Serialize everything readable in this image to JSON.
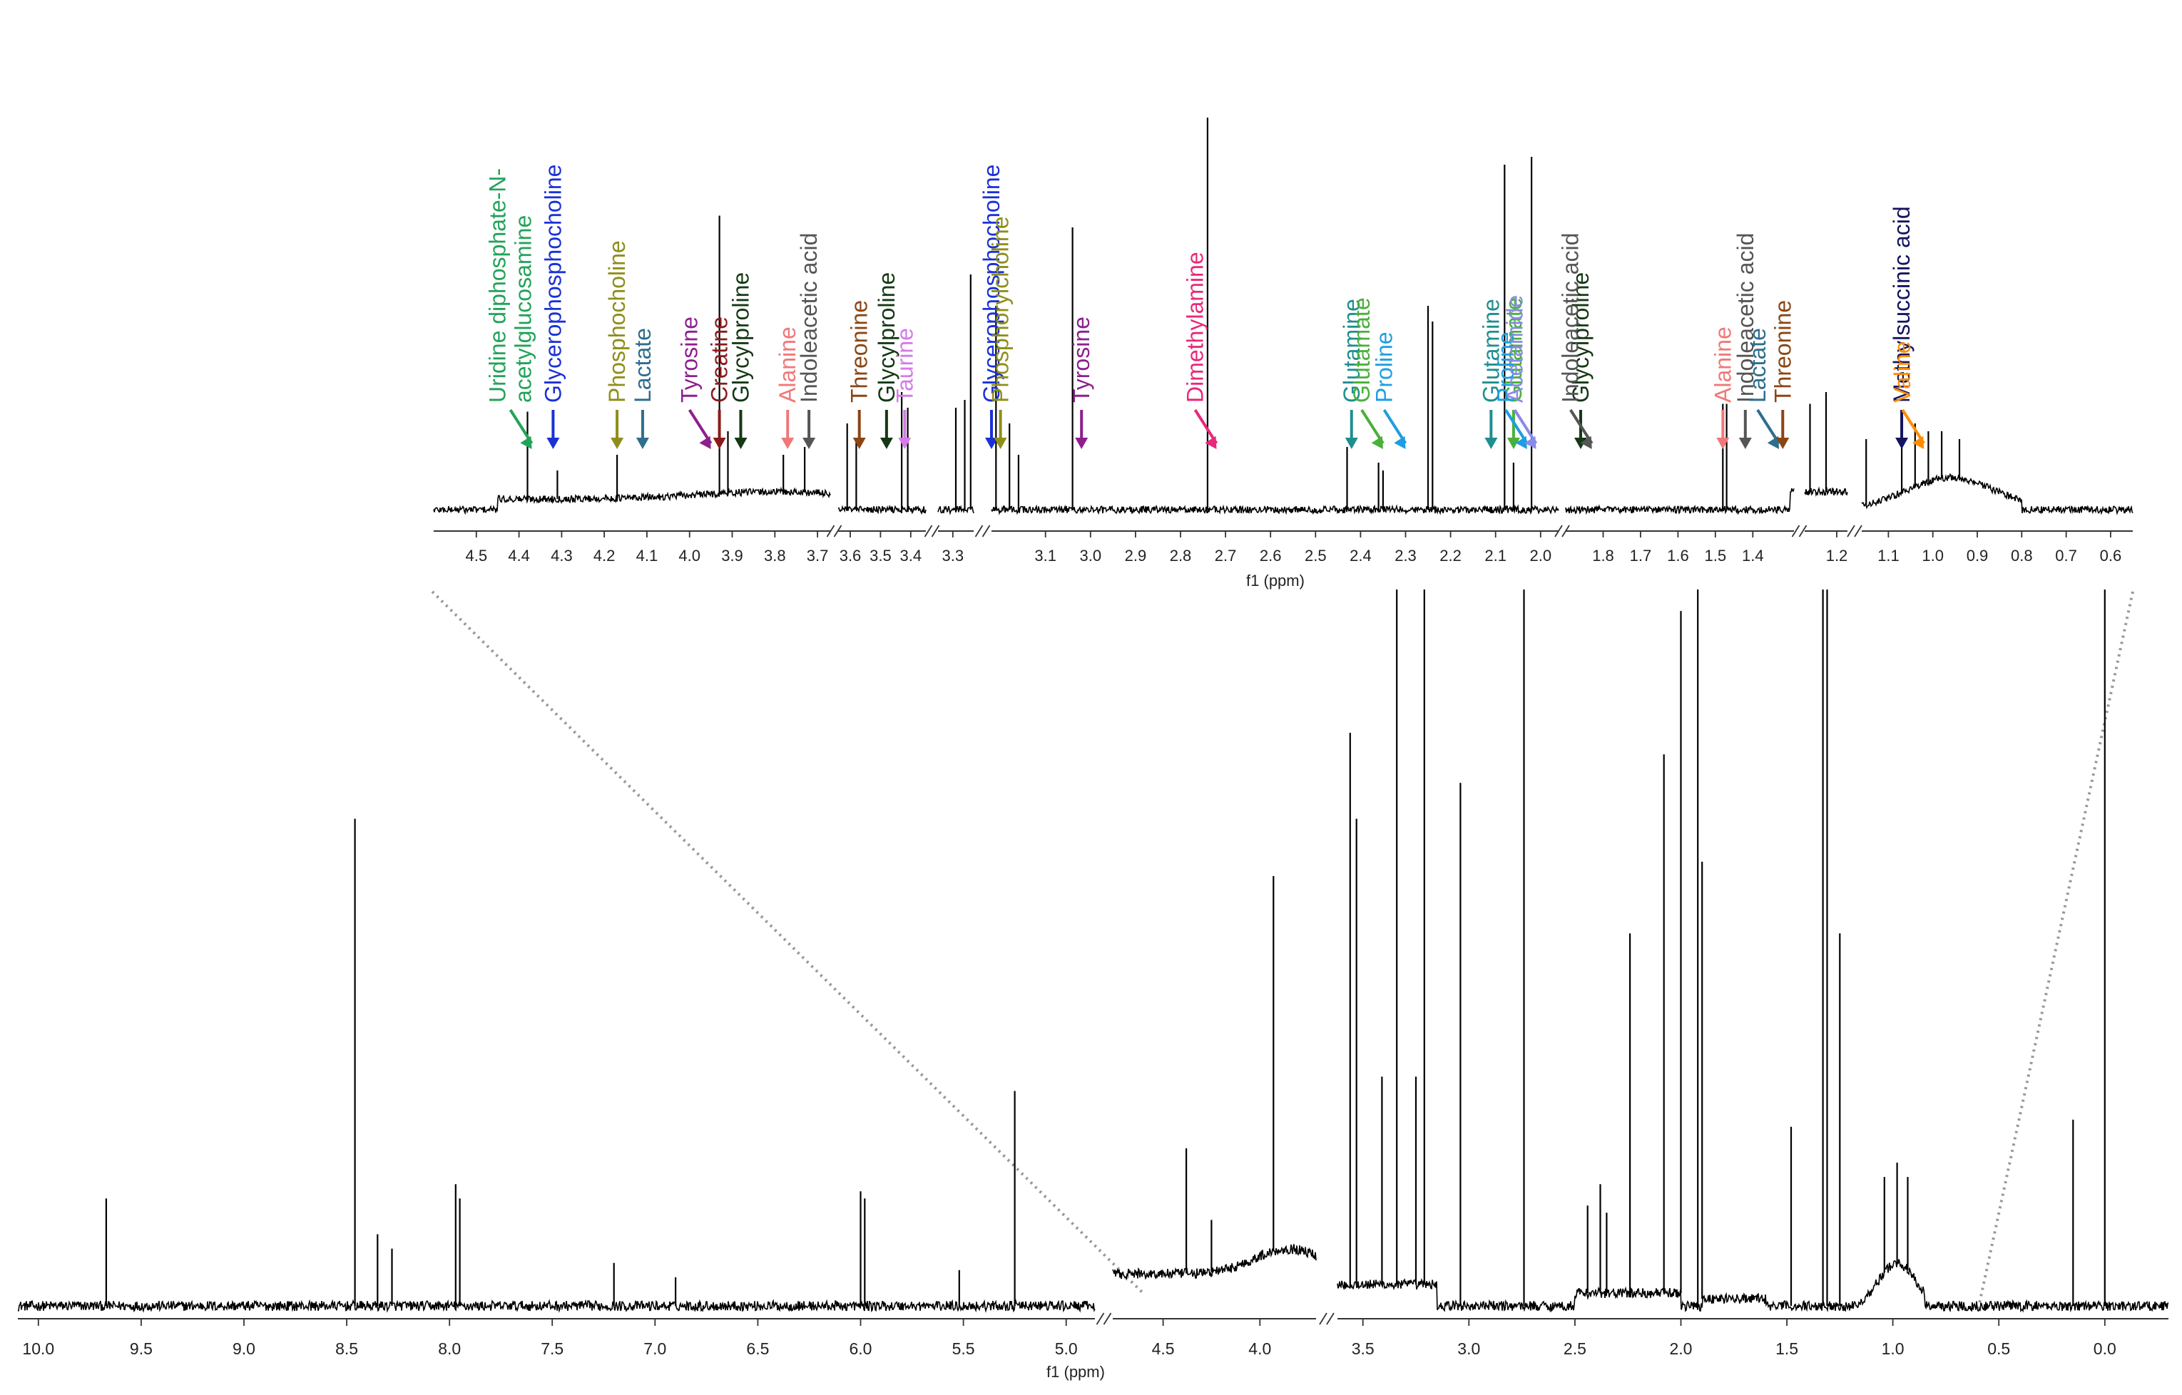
{
  "chart_data": [
    {
      "type": "line",
      "panel": "full 1H NMR spectrum",
      "xlabel": "f1 (ppm)",
      "x_reversed": true,
      "axis_segments": [
        [
          10.1,
          4.86
        ],
        [
          4.76,
          3.71
        ],
        [
          3.62,
          -0.3
        ]
      ],
      "ticks": [
        "10.0",
        "9.5",
        "9.0",
        "8.5",
        "8.0",
        "7.5",
        "7.0",
        "6.5",
        "6.0",
        "5.5",
        "5.0",
        "4.5",
        "4.0",
        "3.5",
        "3.0",
        "2.5",
        "2.0",
        "1.5",
        "1.0",
        "0.5",
        "0.0"
      ],
      "tick_values": [
        10.0,
        9.5,
        9.0,
        8.5,
        8.0,
        7.5,
        7.0,
        6.5,
        6.0,
        5.5,
        5.0,
        4.5,
        4.0,
        3.5,
        3.0,
        2.5,
        2.0,
        1.5,
        1.0,
        0.5,
        0.0
      ],
      "peaks": [
        {
          "ppm": 9.67,
          "intensity": 0.15
        },
        {
          "ppm": 8.46,
          "intensity": 0.68
        },
        {
          "ppm": 8.35,
          "intensity": 0.1
        },
        {
          "ppm": 8.28,
          "intensity": 0.08
        },
        {
          "ppm": 7.97,
          "intensity": 0.17
        },
        {
          "ppm": 7.95,
          "intensity": 0.15
        },
        {
          "ppm": 7.2,
          "intensity": 0.06
        },
        {
          "ppm": 6.9,
          "intensity": 0.04
        },
        {
          "ppm": 6.0,
          "intensity": 0.16
        },
        {
          "ppm": 5.98,
          "intensity": 0.15
        },
        {
          "ppm": 5.52,
          "intensity": 0.05
        },
        {
          "ppm": 5.25,
          "intensity": 0.3
        },
        {
          "ppm": 4.38,
          "intensity": 0.22
        },
        {
          "ppm": 4.25,
          "intensity": 0.12
        },
        {
          "ppm": 3.93,
          "intensity": 0.6
        },
        {
          "ppm": 3.56,
          "intensity": 0.8
        },
        {
          "ppm": 3.53,
          "intensity": 0.68
        },
        {
          "ppm": 3.41,
          "intensity": 0.32
        },
        {
          "ppm": 3.34,
          "intensity": 1.0
        },
        {
          "ppm": 3.25,
          "intensity": 0.32
        },
        {
          "ppm": 3.21,
          "intensity": 1.0
        },
        {
          "ppm": 3.04,
          "intensity": 0.73
        },
        {
          "ppm": 2.74,
          "intensity": 1.0
        },
        {
          "ppm": 2.44,
          "intensity": 0.14
        },
        {
          "ppm": 2.38,
          "intensity": 0.17
        },
        {
          "ppm": 2.35,
          "intensity": 0.13
        },
        {
          "ppm": 2.24,
          "intensity": 0.52
        },
        {
          "ppm": 2.08,
          "intensity": 0.77
        },
        {
          "ppm": 2.0,
          "intensity": 0.97
        },
        {
          "ppm": 1.92,
          "intensity": 1.0
        },
        {
          "ppm": 1.9,
          "intensity": 0.62
        },
        {
          "ppm": 1.48,
          "intensity": 0.25
        },
        {
          "ppm": 1.33,
          "intensity": 1.0
        },
        {
          "ppm": 1.31,
          "intensity": 1.0
        },
        {
          "ppm": 1.25,
          "intensity": 0.52
        },
        {
          "ppm": 1.04,
          "intensity": 0.18
        },
        {
          "ppm": 0.98,
          "intensity": 0.2
        },
        {
          "ppm": 0.93,
          "intensity": 0.18
        },
        {
          "ppm": 0.15,
          "intensity": 0.26
        },
        {
          "ppm": 0.0,
          "intensity": 1.0
        }
      ],
      "zoom_indicator": "dotted lines connect the 4.6–0.6 ppm region to the inset"
    },
    {
      "type": "line",
      "panel": "inset 4.6–0.55 ppm with metabolite assignments",
      "xlabel": "f1 (ppm)",
      "x_reversed": true,
      "axis_segments": [
        [
          4.6,
          3.67
        ],
        [
          3.64,
          3.35
        ],
        [
          3.35,
          3.23
        ],
        [
          3.22,
          1.96
        ],
        [
          1.9,
          1.29
        ],
        [
          1.26,
          1.18
        ],
        [
          1.16,
          0.55
        ]
      ],
      "ticks": [
        "4.5",
        "4.4",
        "4.3",
        "4.2",
        "4.1",
        "4.0",
        "3.9",
        "3.8",
        "3.7",
        "3.6",
        "3.5",
        "3.4",
        "3.3",
        "3.1",
        "3.0",
        "2.9",
        "2.8",
        "2.7",
        "2.6",
        "2.5",
        "2.4",
        "2.3",
        "2.2",
        "2.1",
        "2.0",
        "1.8",
        "1.7",
        "1.6",
        "1.5",
        "1.4",
        "1.2",
        "1.1",
        "1.0",
        "0.9",
        "0.8",
        "0.7",
        "0.6"
      ],
      "tick_values": [
        4.5,
        4.4,
        4.3,
        4.2,
        4.1,
        4.0,
        3.9,
        3.8,
        3.7,
        3.6,
        3.5,
        3.4,
        3.3,
        3.1,
        3.0,
        2.9,
        2.8,
        2.7,
        2.6,
        2.5,
        2.4,
        2.3,
        2.2,
        2.1,
        2.0,
        1.8,
        1.7,
        1.6,
        1.5,
        1.4,
        1.2,
        1.1,
        1.0,
        0.9,
        0.8,
        0.7,
        0.6
      ],
      "peaks": [
        {
          "ppm": 4.38,
          "intensity": 0.25
        },
        {
          "ppm": 4.31,
          "intensity": 0.1
        },
        {
          "ppm": 4.17,
          "intensity": 0.14
        },
        {
          "ppm": 3.93,
          "intensity": 0.75
        },
        {
          "ppm": 3.91,
          "intensity": 0.2
        },
        {
          "ppm": 3.78,
          "intensity": 0.14
        },
        {
          "ppm": 3.73,
          "intensity": 0.16
        },
        {
          "ppm": 3.61,
          "intensity": 0.22
        },
        {
          "ppm": 3.58,
          "intensity": 0.18
        },
        {
          "ppm": 3.43,
          "intensity": 0.3
        },
        {
          "ppm": 3.41,
          "intensity": 0.26
        },
        {
          "ppm": 3.29,
          "intensity": 0.26
        },
        {
          "ppm": 3.26,
          "intensity": 0.28
        },
        {
          "ppm": 3.24,
          "intensity": 0.6
        },
        {
          "ppm": 3.21,
          "intensity": 0.52
        },
        {
          "ppm": 3.18,
          "intensity": 0.22
        },
        {
          "ppm": 3.16,
          "intensity": 0.14
        },
        {
          "ppm": 3.04,
          "intensity": 0.72
        },
        {
          "ppm": 2.74,
          "intensity": 1.0
        },
        {
          "ppm": 2.43,
          "intensity": 0.16
        },
        {
          "ppm": 2.36,
          "intensity": 0.12
        },
        {
          "ppm": 2.35,
          "intensity": 0.1
        },
        {
          "ppm": 2.25,
          "intensity": 0.52
        },
        {
          "ppm": 2.24,
          "intensity": 0.48
        },
        {
          "ppm": 2.08,
          "intensity": 0.88
        },
        {
          "ppm": 2.06,
          "intensity": 0.12
        },
        {
          "ppm": 2.02,
          "intensity": 0.9
        },
        {
          "ppm": 1.48,
          "intensity": 0.27
        },
        {
          "ppm": 1.47,
          "intensity": 0.27
        },
        {
          "ppm": 1.25,
          "intensity": 0.27
        },
        {
          "ppm": 1.22,
          "intensity": 0.3
        },
        {
          "ppm": 1.15,
          "intensity": 0.18
        },
        {
          "ppm": 1.07,
          "intensity": 0.2
        },
        {
          "ppm": 1.04,
          "intensity": 0.22
        },
        {
          "ppm": 1.01,
          "intensity": 0.2
        },
        {
          "ppm": 0.98,
          "intensity": 0.2
        },
        {
          "ppm": 0.94,
          "intensity": 0.18
        }
      ],
      "annotations": [
        {
          "lines": [
            "Uridine diphosphate-N-",
            "acetylglucosamine"
          ],
          "ppm": 4.37,
          "color": "#22a35a",
          "arrow": "diagonal"
        },
        {
          "lines": [
            "Glycerophosphocholine"
          ],
          "ppm": 4.32,
          "color": "#1a31d6",
          "arrow": "vertical"
        },
        {
          "lines": [
            "Phosphocholine"
          ],
          "ppm": 4.17,
          "color": "#8e8e19",
          "arrow": "vertical"
        },
        {
          "lines": [
            "Lactate"
          ],
          "ppm": 4.11,
          "color": "#2e6e8e",
          "arrow": "vertical"
        },
        {
          "lines": [
            "Tyrosine"
          ],
          "ppm": 3.95,
          "color": "#8e1f8e",
          "arrow": "diagonal"
        },
        {
          "lines": [
            "Creatine"
          ],
          "ppm": 3.93,
          "color": "#8b1a1a",
          "arrow": "vertical"
        },
        {
          "lines": [
            "Glycylproline"
          ],
          "ppm": 3.88,
          "color": "#143814",
          "arrow": "vertical"
        },
        {
          "lines": [
            "Alanine"
          ],
          "ppm": 3.77,
          "color": "#f07878",
          "arrow": "vertical"
        },
        {
          "lines": [
            "Indoleacetic acid"
          ],
          "ppm": 3.72,
          "color": "#555555",
          "arrow": "vertical"
        },
        {
          "lines": [
            "Threonine"
          ],
          "ppm": 3.57,
          "color": "#8b4513",
          "arrow": "vertical"
        },
        {
          "lines": [
            "Glycylproline"
          ],
          "ppm": 3.48,
          "color": "#143814",
          "arrow": "vertical"
        },
        {
          "lines": [
            "Taurine"
          ],
          "ppm": 3.42,
          "color": "#d57ae8",
          "arrow": "vertical"
        },
        {
          "lines": [
            "Glycerophosphocholine"
          ],
          "ppm": 3.22,
          "color": "#1a31d6",
          "arrow": "vertical"
        },
        {
          "lines": [
            "Phosphorylcholine"
          ],
          "ppm": 3.2,
          "color": "#8e8e19",
          "arrow": "vertical"
        },
        {
          "lines": [
            "Tyrosine"
          ],
          "ppm": 3.02,
          "color": "#8e1f8e",
          "arrow": "vertical"
        },
        {
          "lines": [
            "Dimethylamine"
          ],
          "ppm": 2.72,
          "color": "#e8287a",
          "arrow": "diagonal"
        },
        {
          "lines": [
            "Glutamine"
          ],
          "ppm": 2.42,
          "color": "#1f8e8e",
          "arrow": "vertical"
        },
        {
          "lines": [
            "Glutamate"
          ],
          "ppm": 2.35,
          "color": "#4ab03a",
          "arrow": "diagonal"
        },
        {
          "lines": [
            "Proline"
          ],
          "ppm": 2.3,
          "color": "#1e9ee0",
          "arrow": "diagonal"
        },
        {
          "lines": [
            "Glutamine"
          ],
          "ppm": 2.11,
          "color": "#1f8e8e",
          "arrow": "vertical"
        },
        {
          "lines": [
            "Glutamate"
          ],
          "ppm": 2.06,
          "color": "#4ab03a",
          "arrow": "vertical"
        },
        {
          "lines": [
            "Proline"
          ],
          "ppm": 2.03,
          "color": "#1e9ee0",
          "arrow": "diagonal"
        },
        {
          "lines": [
            "Acetamide"
          ],
          "ppm": 2.01,
          "color": "#8a8ae8",
          "arrow": "diagonal"
        },
        {
          "lines": [
            "Glycylproline"
          ],
          "ppm": 1.86,
          "color": "#143814",
          "arrow": "vertical"
        },
        {
          "lines": [
            "Indoleacetic acid"
          ],
          "ppm": 1.83,
          "color": "#555555",
          "arrow": "diagonal"
        },
        {
          "lines": [
            "Alanine"
          ],
          "ppm": 1.48,
          "color": "#f07878",
          "arrow": "vertical"
        },
        {
          "lines": [
            "Indoleacetic acid"
          ],
          "ppm": 1.42,
          "color": "#555555",
          "arrow": "vertical"
        },
        {
          "lines": [
            "Lactate"
          ],
          "ppm": 1.33,
          "color": "#2e6e8e",
          "arrow": "diagonal"
        },
        {
          "lines": [
            "Threonine"
          ],
          "ppm": 1.32,
          "color": "#8b4513",
          "arrow": "vertical"
        },
        {
          "lines": [
            "Methylsuccinic acid"
          ],
          "ppm": 1.07,
          "color": "#14145e",
          "arrow": "vertical"
        },
        {
          "lines": [
            "Valine"
          ],
          "ppm": 1.02,
          "color": "#ff8c00",
          "arrow": "diagonal"
        }
      ]
    }
  ]
}
